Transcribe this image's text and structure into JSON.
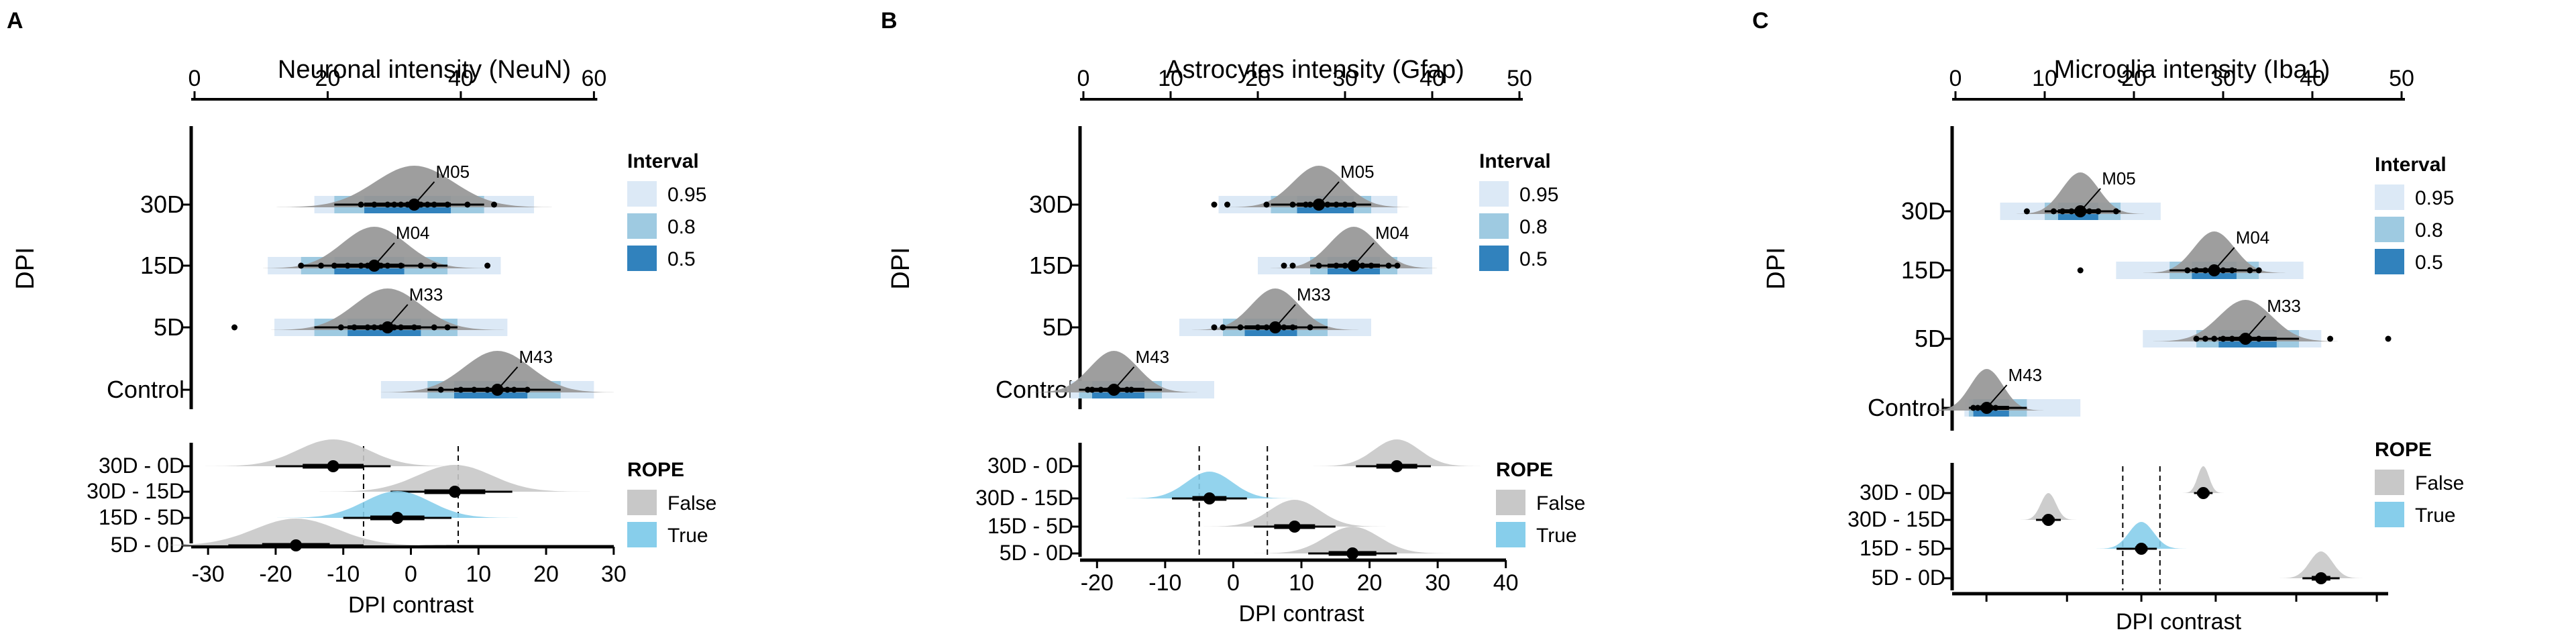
{
  "colors": {
    "interval_95": "#dce9f6",
    "interval_80": "#9ecae1",
    "interval_50": "#3182bd",
    "rope_false": "#c8c8c8",
    "rope_true": "#87ceeb",
    "posterior": "#999999"
  },
  "chart_data": [
    {
      "type": "scatter",
      "panel": "A",
      "title": "Neuronal intensity (NeuN)",
      "ylabel": "DPI",
      "xlabel": "DPI contrast",
      "top_axis": {
        "ticks": [
          0,
          20,
          40,
          60
        ],
        "lim": [
          0,
          65
        ]
      },
      "groups": [
        {
          "label": "30D",
          "model": "M05",
          "center": 33,
          "i50": [
            25.5,
            38.5
          ],
          "i80": [
            21,
            43.5
          ],
          "i95": [
            18,
            51
          ],
          "points": [
            25,
            27,
            29,
            30,
            31,
            32,
            33,
            34,
            35,
            36,
            38,
            41,
            45
          ]
        },
        {
          "label": "15D",
          "model": "M04",
          "center": 27,
          "i50": [
            21,
            31.5
          ],
          "i80": [
            16,
            38
          ],
          "i95": [
            11,
            46
          ],
          "points": [
            16,
            19,
            21,
            23,
            25,
            26,
            27,
            28,
            29,
            31,
            34,
            36,
            44
          ]
        },
        {
          "label": "5D",
          "model": "M33",
          "center": 29,
          "i50": [
            23,
            34
          ],
          "i80": [
            18,
            39.5
          ],
          "i95": [
            12,
            47
          ],
          "points": [
            6,
            22,
            24,
            26,
            27,
            28,
            29,
            30,
            31,
            33,
            36,
            38
          ]
        },
        {
          "label": "Control",
          "model": "M43",
          "center": 45.5,
          "i50": [
            39,
            50
          ],
          "i80": [
            35,
            55
          ],
          "i95": [
            28,
            60
          ],
          "points": [
            37,
            40,
            42,
            44,
            45,
            46,
            47,
            48,
            50
          ]
        }
      ],
      "interval_legend": {
        "title": "Interval",
        "items": [
          "0.95",
          "0.8",
          "0.5"
        ]
      },
      "contrast_axis": {
        "ticks": [
          -30,
          -20,
          -10,
          0,
          10,
          20,
          30
        ],
        "lim": [
          -32,
          32
        ],
        "rope": [
          -7,
          7
        ]
      },
      "contrasts": [
        {
          "label": "30D - 0D",
          "median": -11.5,
          "i66": [
            -16,
            -7
          ],
          "i95": [
            -20,
            -3
          ],
          "rope": "False"
        },
        {
          "label": "30D - 15D",
          "median": 6.5,
          "i66": [
            2,
            11
          ],
          "i95": [
            -3,
            15
          ],
          "rope": "False"
        },
        {
          "label": "15D - 5D",
          "median": -2,
          "i66": [
            -6,
            2
          ],
          "i95": [
            -10,
            6
          ],
          "rope": "True"
        },
        {
          "label": "5D - 0D",
          "median": -17,
          "i66": [
            -22,
            -12
          ],
          "i95": [
            -27,
            -7
          ],
          "rope": "False"
        }
      ],
      "rope_legend": {
        "title": "ROPE",
        "items": [
          "False",
          "True"
        ]
      }
    },
    {
      "type": "scatter",
      "panel": "B",
      "title": "Astrocytes intensity (Gfap)",
      "ylabel": "DPI",
      "xlabel": "DPI contrast",
      "top_axis": {
        "ticks": [
          0,
          10,
          20,
          30,
          40,
          50
        ],
        "lim": [
          0,
          50
        ]
      },
      "groups": [
        {
          "label": "30D",
          "model": "M05",
          "center": 27,
          "i50": [
            24.5,
            31
          ],
          "i80": [
            21.5,
            33
          ],
          "i95": [
            15.5,
            36
          ],
          "points": [
            15,
            16.5,
            21,
            24,
            25.5,
            26,
            27,
            28,
            29,
            30,
            31
          ]
        },
        {
          "label": "15D",
          "model": "M04",
          "center": 31,
          "i50": [
            28,
            34
          ],
          "i80": [
            26,
            36
          ],
          "i95": [
            20,
            40
          ],
          "points": [
            23,
            24,
            27,
            29,
            30,
            31,
            32,
            33,
            35,
            36
          ]
        },
        {
          "label": "5D",
          "model": "M33",
          "center": 22,
          "i50": [
            18.5,
            24.5
          ],
          "i80": [
            16,
            28
          ],
          "i95": [
            11,
            33
          ],
          "points": [
            15,
            16,
            18,
            20,
            21,
            22,
            23,
            24,
            26
          ]
        },
        {
          "label": "Control",
          "model": "M43",
          "center": 3.5,
          "i50": [
            1,
            7
          ],
          "i80": [
            -0.5,
            9
          ],
          "i95": [
            -1.5,
            15
          ],
          "points": [
            0.5,
            1,
            2,
            3,
            3.5,
            4,
            5,
            5.5
          ]
        }
      ],
      "interval_legend": {
        "title": "Interval",
        "items": [
          "0.95",
          "0.8",
          "0.5"
        ]
      },
      "contrast_axis": {
        "ticks": [
          -20,
          -10,
          0,
          10,
          20,
          30,
          40
        ],
        "lim": [
          -22,
          42
        ],
        "rope": [
          -5,
          5
        ]
      },
      "contrasts": [
        {
          "label": "30D - 0D",
          "median": 24,
          "i66": [
            21,
            27
          ],
          "i95": [
            18,
            29
          ],
          "rope": "False"
        },
        {
          "label": "30D - 15D",
          "median": -3.5,
          "i66": [
            -6,
            -1
          ],
          "i95": [
            -9,
            2
          ],
          "rope": "True"
        },
        {
          "label": "15D - 5D",
          "median": 9,
          "i66": [
            6,
            12
          ],
          "i95": [
            3,
            15
          ],
          "rope": "False"
        },
        {
          "label": "5D - 0D",
          "median": 17.5,
          "i66": [
            14,
            21
          ],
          "i95": [
            11,
            24
          ],
          "rope": "False"
        }
      ],
      "rope_legend": {
        "title": "ROPE",
        "items": [
          "False",
          "True"
        ]
      }
    },
    {
      "type": "scatter",
      "panel": "C",
      "title": "Microglia intensity (Iba1)",
      "ylabel": "DPI",
      "xlabel": "DPI contrast",
      "top_axis": {
        "ticks": [
          0,
          10,
          20,
          30,
          40,
          50
        ],
        "lim": [
          0,
          50
        ]
      },
      "groups": [
        {
          "label": "30D",
          "model": "M05",
          "center": 14,
          "i50": [
            11.5,
            16
          ],
          "i80": [
            10,
            18.5
          ],
          "i95": [
            5,
            23
          ],
          "points": [
            8,
            11,
            12,
            13,
            14,
            15,
            16,
            18
          ]
        },
        {
          "label": "15D",
          "model": "M04",
          "center": 29,
          "i50": [
            26.5,
            31.5
          ],
          "i80": [
            24,
            34
          ],
          "i95": [
            18,
            39
          ],
          "points": [
            14,
            26,
            27,
            28,
            29,
            30,
            31,
            33,
            34
          ]
        },
        {
          "label": "5D",
          "model": "M33",
          "center": 32.5,
          "i50": [
            29.5,
            36
          ],
          "i80": [
            27,
            38.5
          ],
          "i95": [
            21,
            41
          ],
          "points": [
            27,
            28,
            29,
            30,
            31,
            32,
            33,
            34,
            42,
            48.5
          ]
        },
        {
          "label": "Control",
          "model": "M43",
          "center": 3.5,
          "i50": [
            2,
            6
          ],
          "i80": [
            1.5,
            8
          ],
          "i95": [
            1,
            14
          ],
          "points": [
            2,
            2.5,
            3,
            3.5,
            4,
            4.5
          ]
        }
      ],
      "interval_legend": {
        "title": "Interval",
        "items": [
          "0.95",
          "0.8",
          "0.5"
        ]
      },
      "contrast_axis": {
        "ticks": [],
        "lim": [
          -30,
          42
        ],
        "rope": [
          -3,
          3
        ]
      },
      "contrasts": [
        {
          "label": "30D - 0D",
          "median": 10,
          "i66": [
            9,
            11
          ],
          "i95": [
            8.5,
            11.5
          ],
          "rope": "False"
        },
        {
          "label": "30D - 15D",
          "median": -15,
          "i66": [
            -16,
            -14
          ],
          "i95": [
            -17,
            -13
          ],
          "rope": "False"
        },
        {
          "label": "15D - 5D",
          "median": 0,
          "i66": [
            -1,
            1
          ],
          "i95": [
            -4,
            2.5
          ],
          "rope": "True"
        },
        {
          "label": "5D - 0D",
          "median": 29,
          "i66": [
            27.5,
            30.5
          ],
          "i95": [
            26,
            32
          ],
          "rope": "False"
        }
      ],
      "rope_legend": {
        "title": "ROPE",
        "items": [
          "False",
          "True"
        ]
      }
    }
  ]
}
